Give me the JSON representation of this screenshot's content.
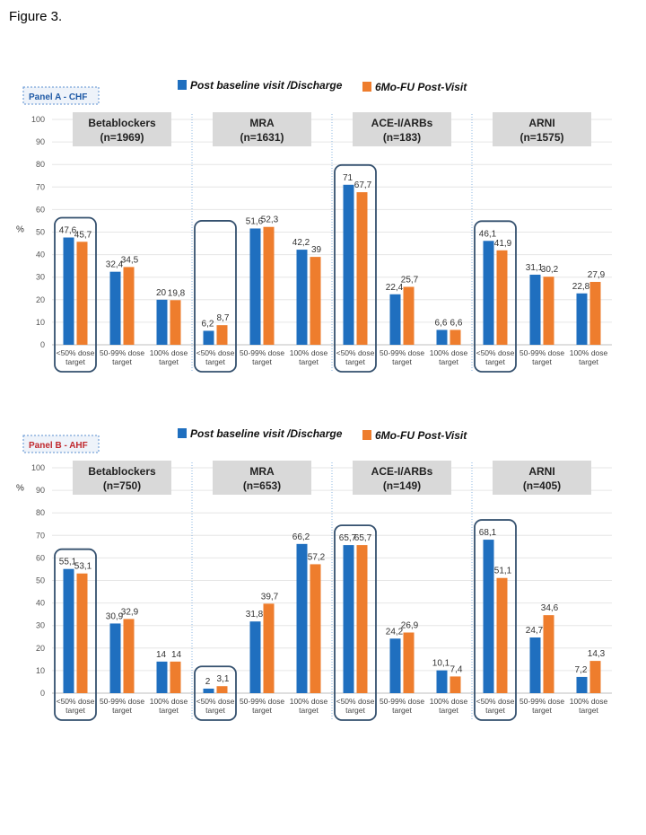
{
  "figure_title": "Figure 3.",
  "legend": {
    "series1": "Post baseline visit /Discharge",
    "series2": "6Mo-FU Post-Visit",
    "color1": "#1f6fbf",
    "color2": "#ee7d2d"
  },
  "ylabel": "%",
  "categories": [
    "<50% dose target",
    "50-99% dose target",
    "100% dose target"
  ],
  "chart_data": [
    {
      "type": "bar",
      "panel_label": "Panel A - CHF",
      "panel_label_color": "#1f5aa6",
      "ylim": [
        0,
        100
      ],
      "yticks": [
        0,
        10,
        20,
        30,
        40,
        50,
        60,
        70,
        80,
        90,
        100
      ],
      "grid": true,
      "groups": [
        {
          "name": "Betablockers",
          "n": "(n=1969)",
          "s1": [
            47.6,
            32.4,
            20
          ],
          "s2": [
            45.7,
            34.5,
            19.8
          ],
          "l1": [
            "47,6",
            "32,4",
            "20"
          ],
          "l2": [
            "45,7",
            "34,5",
            "19,8"
          ],
          "highlight": 0
        },
        {
          "name": "MRA",
          "n": "(n=1631)",
          "s1": [
            6.2,
            51.6,
            42.2
          ],
          "s2": [
            8.7,
            52.3,
            39
          ],
          "l1": [
            "6,2",
            "51,6",
            "42,2"
          ],
          "l2": [
            "8,7",
            "52,3",
            "39"
          ],
          "highlight": 0
        },
        {
          "name": "ACE-I/ARBs",
          "n": "(n=183)",
          "s1": [
            71,
            22.4,
            6.6
          ],
          "s2": [
            67.7,
            25.7,
            6.6
          ],
          "l1": [
            "71",
            "22,4",
            "6,6"
          ],
          "l2": [
            "67,7",
            "25,7",
            "6,6"
          ],
          "highlight": 0
        },
        {
          "name": "ARNI",
          "n": "(n=1575)",
          "s1": [
            46.1,
            31.1,
            22.8
          ],
          "s2": [
            41.9,
            30.2,
            27.9
          ],
          "l1": [
            "46,1",
            "31,1",
            "22,8"
          ],
          "l2": [
            "41,9",
            "30,2",
            "27,9"
          ],
          "highlight": 0
        }
      ]
    },
    {
      "type": "bar",
      "panel_label": "Panel B - AHF",
      "panel_label_color": "#c0282d",
      "ylim": [
        0,
        100
      ],
      "yticks": [
        0,
        10,
        20,
        30,
        40,
        50,
        60,
        70,
        80,
        90,
        100
      ],
      "grid": true,
      "groups": [
        {
          "name": "Betablockers",
          "n": "(n=750)",
          "s1": [
            55.1,
            30.9,
            14
          ],
          "s2": [
            53.1,
            32.9,
            14
          ],
          "l1": [
            "55,1",
            "30,9",
            "14"
          ],
          "l2": [
            "53,1",
            "32,9",
            "14"
          ],
          "highlight": 0
        },
        {
          "name": "MRA",
          "n": "(n=653)",
          "s1": [
            2,
            31.8,
            66.2
          ],
          "s2": [
            3.1,
            39.7,
            57.2
          ],
          "l1": [
            "2",
            "31,8",
            "66,2"
          ],
          "l2": [
            "3,1",
            "39,7",
            "57,2"
          ],
          "highlight": 0
        },
        {
          "name": "ACE-I/ARBs",
          "n": "(n=149)",
          "s1": [
            65.7,
            24.2,
            10.1
          ],
          "s2": [
            65.7,
            26.9,
            7.4
          ],
          "l1": [
            "65,7",
            "24,2",
            "10,1"
          ],
          "l2": [
            "65,7",
            "26,9",
            "7,4"
          ],
          "highlight": 0
        },
        {
          "name": "ARNI",
          "n": "(n=405)",
          "s1": [
            68.1,
            24.7,
            7.2
          ],
          "s2": [
            51.1,
            34.6,
            14.3
          ],
          "l1": [
            "68,1",
            "24,7",
            "7,2"
          ],
          "l2": [
            "51,1",
            "34,6",
            "14,3"
          ],
          "highlight": 0
        }
      ]
    }
  ]
}
